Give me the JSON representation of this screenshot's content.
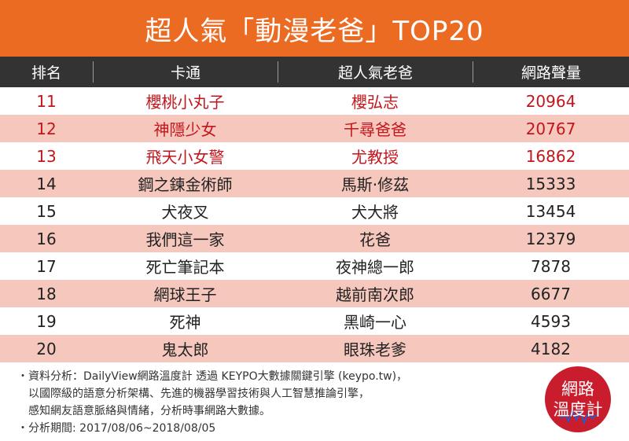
{
  "title": "超人氣「動漫老爸」TOP20",
  "colors": {
    "title_bg": "#ec6b22",
    "header_bg": "#333333",
    "stripe": "#f5c7bd",
    "highlight_text": "#c3161c",
    "logo_bg": "#c91d2d"
  },
  "chart_data": {
    "type": "table",
    "title": "超人氣「動漫老爸」TOP20",
    "columns": [
      "排名",
      "卡通",
      "超人氣老爸",
      "網路聲量"
    ],
    "rows": [
      {
        "rank": "11",
        "anime": "櫻桃小丸子",
        "dad": "櫻弘志",
        "volume": 20964
      },
      {
        "rank": "12",
        "anime": "神隱少女",
        "dad": "千尋爸爸",
        "volume": 20767
      },
      {
        "rank": "13",
        "anime": "飛天小女警",
        "dad": "尤教授",
        "volume": 16862
      },
      {
        "rank": "14",
        "anime": "鋼之鍊金術師",
        "dad": "馬斯·修茲",
        "volume": 15333
      },
      {
        "rank": "15",
        "anime": "犬夜叉",
        "dad": "犬大將",
        "volume": 13454
      },
      {
        "rank": "16",
        "anime": "我們這一家",
        "dad": "花爸",
        "volume": 12379
      },
      {
        "rank": "17",
        "anime": "死亡筆記本",
        "dad": "夜神總一郎",
        "volume": 7878
      },
      {
        "rank": "18",
        "anime": "網球王子",
        "dad": "越前南次郎",
        "volume": 6677
      },
      {
        "rank": "19",
        "anime": "死神",
        "dad": "黑崎一心",
        "volume": 4593
      },
      {
        "rank": "20",
        "anime": "鬼太郎",
        "dad": "眼珠老爹",
        "volume": 4182
      }
    ],
    "highlighted_rows": 3
  },
  "footer": {
    "lines": [
      "・資料分析：DailyView網路溫度計 透過 KEYPO大數據關鍵引擎 (keypo.tw)，",
      "　以國際級的語意分析架構、先進的機器學習技術與人工智慧推論引擎，",
      "　感知網友語意脈絡與情緒，分析時事網路大數據。",
      "・分析期間: 2017/08/06~2018/08/05"
    ]
  },
  "logo": {
    "line1": "網路",
    "line2": "溫度計"
  }
}
